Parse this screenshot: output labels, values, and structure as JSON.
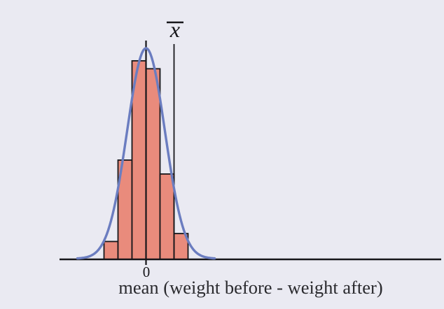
{
  "figure": {
    "description": "Histogram of sample means with overlaid normal curve and sample-mean marker",
    "background_color": "#eaeaf2"
  },
  "chart_data": {
    "type": "bar",
    "subtype": "histogram-with-normal-curve",
    "title": "",
    "xlabel": "mean (weight before - weight after)",
    "ylabel": "",
    "x_ticks": [
      {
        "label": "0",
        "position": 0
      }
    ],
    "bins": {
      "edges": [
        -3,
        -2,
        -1,
        0,
        1,
        2,
        3
      ],
      "frequencies_normalized": [
        0.09,
        0.5,
        1.0,
        0.96,
        0.43,
        0.13
      ]
    },
    "markers": [
      {
        "name": "sample-mean",
        "label": "x̄",
        "glyph": "x",
        "position": 2,
        "style": "vertical-line"
      }
    ],
    "zero_reference_line": {
      "position": 0
    },
    "overlay_curve": {
      "shape": "normal",
      "mean": 0,
      "sigma_bins": 1.35,
      "peak_normalized": 1.06
    },
    "axis": {
      "x_range_bins": [
        -6.2,
        21
      ],
      "grid": false,
      "legend": false
    },
    "colors": {
      "bar_fill": "#e98b7c",
      "bar_stroke": "#16161a",
      "curve": "#6b7dc0",
      "axis": "#16161a",
      "text": "#2a2a2e",
      "background": "#eaeaf2"
    }
  }
}
